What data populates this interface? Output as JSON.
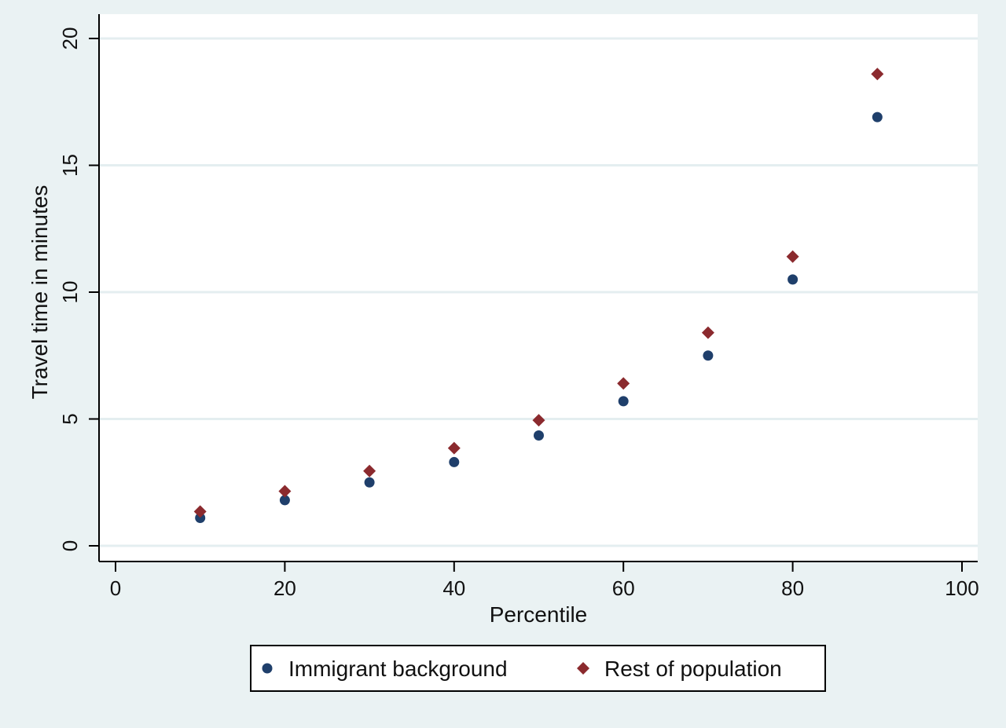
{
  "chart_data": {
    "type": "scatter",
    "title": "",
    "xlabel": "Percentile",
    "ylabel": "Travel time in minutes",
    "xlim": [
      0,
      100
    ],
    "ylim": [
      0,
      20
    ],
    "xticks": [
      0,
      20,
      40,
      60,
      80,
      100
    ],
    "yticks": [
      0,
      5,
      10,
      15,
      20
    ],
    "grid": "horizontal",
    "legend_position": "bottom",
    "x": [
      10,
      20,
      30,
      40,
      50,
      60,
      70,
      80,
      90
    ],
    "series": [
      {
        "name": "Immigrant background",
        "marker": "circle",
        "color": "#1f3f6b",
        "values": [
          1.1,
          1.8,
          2.5,
          3.3,
          4.35,
          5.7,
          7.5,
          10.5,
          16.9
        ]
      },
      {
        "name": "Rest of population",
        "marker": "diamond",
        "color": "#8b2a2e",
        "values": [
          1.35,
          2.15,
          2.95,
          3.85,
          4.95,
          6.4,
          8.4,
          11.4,
          18.6
        ]
      }
    ]
  },
  "colors": {
    "page_background": "#eaf2f3",
    "plot_background": "#ffffff",
    "gridline": "#e4eef0",
    "axis": "#000000"
  }
}
